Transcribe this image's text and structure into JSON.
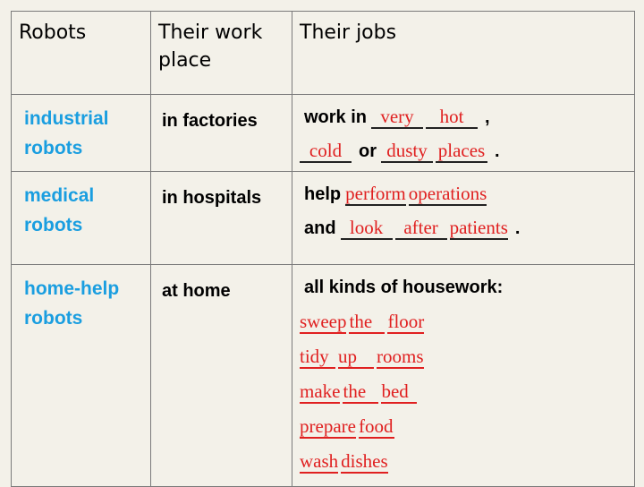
{
  "table": {
    "header": [
      "Robots",
      "Their work place",
      "Their jobs"
    ],
    "rows": [
      {
        "robot": "industrial robots",
        "place": "in factories",
        "jobs": [
          [
            {
              "text": "work in"
            },
            {
              "blank": "very"
            },
            {
              "blank": "hot"
            },
            {
              "text": ","
            }
          ],
          [
            {
              "blank": "cold"
            },
            {
              "text": "or"
            },
            {
              "blank": "dusty"
            },
            {
              "blank": "places"
            },
            {
              "text": "."
            }
          ]
        ]
      },
      {
        "robot": "medical robots",
        "place": "in hospitals",
        "jobs": [
          [
            {
              "text": "help"
            },
            {
              "blank": "perform"
            },
            {
              "blank": "operations"
            }
          ],
          [
            {
              "text": "and"
            },
            {
              "blank": "look"
            },
            {
              "blank": "after"
            },
            {
              "blank": "patients"
            },
            {
              "text": "."
            }
          ]
        ]
      },
      {
        "robot": "home-help robots",
        "place": "at home",
        "jobs": [
          [
            {
              "text": "all kinds of housework:"
            }
          ],
          [
            {
              "blank": "sweep"
            },
            {
              "blank": "the"
            },
            {
              "blank": "floor"
            }
          ],
          [
            {
              "blank": "tidy"
            },
            {
              "blank": "up"
            },
            {
              "blank": "rooms"
            }
          ],
          [
            {
              "blank": "make"
            },
            {
              "blank": "the"
            },
            {
              "blank": "bed"
            }
          ],
          [
            {
              "blank": "prepare"
            },
            {
              "blank": "food"
            }
          ],
          [
            {
              "blank": "wash"
            },
            {
              "blank": "dishes"
            }
          ]
        ]
      }
    ]
  }
}
